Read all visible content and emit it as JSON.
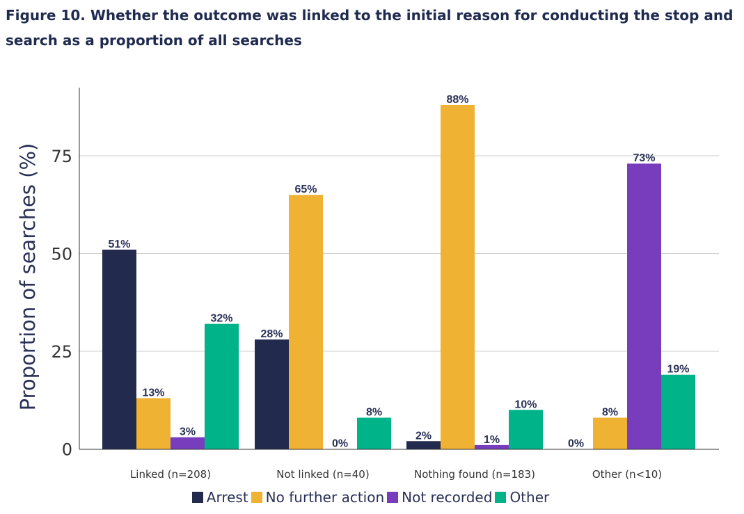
{
  "title": "Figure 10. Whether the outcome was linked to the initial reason for conducting the stop and search as a proportion of all searches",
  "chart_data": {
    "type": "bar",
    "title": "Figure 10. Whether the outcome was linked to the initial reason for conducting the stop and search as a proportion of all searches",
    "xlabel": "",
    "ylabel": "Proportion of searches (%)",
    "ylim": [
      0,
      90
    ],
    "yticks": [
      0,
      25,
      50,
      75
    ],
    "grid": true,
    "legend_position": "bottom",
    "categories": [
      "Linked (n=208)",
      "Not linked (n=40)",
      "Nothing found (n=183)",
      "Other (n<10)"
    ],
    "series": [
      {
        "name": "Arrest",
        "color": "#222a4e",
        "values": [
          51,
          28,
          2,
          0
        ],
        "labels": [
          "51%",
          "28%",
          "2%",
          "0%"
        ]
      },
      {
        "name": "No further action",
        "color": "#f0b232",
        "values": [
          13,
          65,
          88,
          8
        ],
        "labels": [
          "13%",
          "65%",
          "88%",
          "8%"
        ]
      },
      {
        "name": "Not recorded",
        "color": "#773dbd",
        "values": [
          3,
          0,
          1,
          73
        ],
        "labels": [
          "3%",
          "0%",
          "1%",
          "73%"
        ]
      },
      {
        "name": "Other",
        "color": "#00b388",
        "values": [
          32,
          8,
          10,
          19
        ],
        "labels": [
          "32%",
          "8%",
          "10%",
          "19%"
        ]
      }
    ]
  }
}
